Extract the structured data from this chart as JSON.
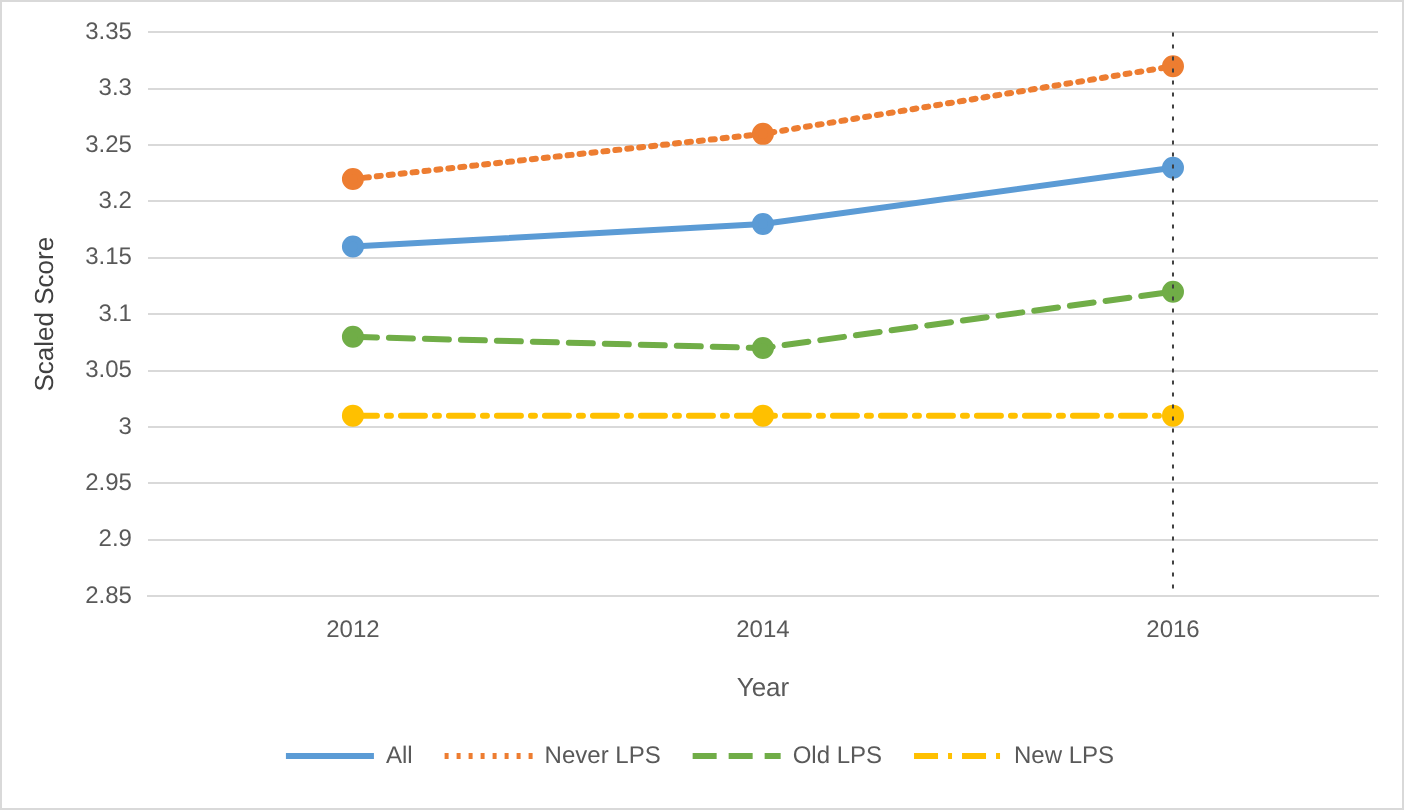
{
  "chart_data": {
    "type": "line",
    "xlabel": "Year",
    "ylabel": "Scaled Score",
    "categories": [
      "2012",
      "2014",
      "2016"
    ],
    "series": [
      {
        "name": "All",
        "color": "#5b9bd5",
        "values": [
          3.16,
          3.18,
          3.23
        ],
        "line_style": "solid"
      },
      {
        "name": "Never LPS",
        "color": "#ed7d31",
        "values": [
          3.22,
          3.26,
          3.32
        ],
        "line_style": "dotted"
      },
      {
        "name": "Old LPS",
        "color": "#70ad47",
        "values": [
          3.08,
          3.07,
          3.12
        ],
        "line_style": "dashed"
      },
      {
        "name": "New LPS",
        "color": "#ffc000",
        "values": [
          3.01,
          3.01,
          3.01
        ],
        "line_style": "dashdot"
      }
    ],
    "ylim": [
      2.85,
      3.35
    ],
    "yticks": [
      2.85,
      2.9,
      2.95,
      3,
      3.05,
      3.1,
      3.15,
      3.2,
      3.25,
      3.3,
      3.35
    ],
    "grid": "y",
    "legend": "bottom",
    "marker": "circle",
    "ref_lines": [
      {
        "axis": "x",
        "value": "2016",
        "color": "#404040",
        "line_style": "dotted"
      }
    ]
  }
}
